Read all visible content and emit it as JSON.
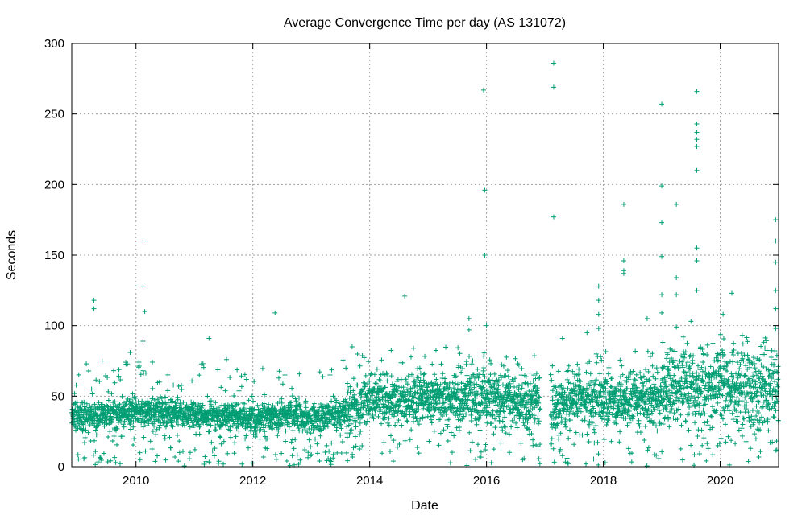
{
  "chart_data": {
    "type": "scatter",
    "title": "Average Convergence Time per day (AS 131072)",
    "xlabel": "Date",
    "ylabel": "Seconds",
    "xlim": [
      2008.9,
      2021.0
    ],
    "ylim": [
      0,
      300
    ],
    "xticks": [
      2010,
      2012,
      2014,
      2016,
      2018,
      2020
    ],
    "xtick_labels": [
      "2010",
      "2012",
      "2014",
      "2016",
      "2018",
      "2020"
    ],
    "yticks": [
      0,
      50,
      100,
      150,
      200,
      250,
      300
    ],
    "ytick_labels": [
      "0",
      "50",
      "100",
      "150",
      "200",
      "250",
      "300"
    ],
    "grid": true,
    "marker": "+",
    "color": "#009e73",
    "gap": [
      2016.92,
      2017.1
    ],
    "baseline": [
      [
        2008.9,
        36
      ],
      [
        2009.5,
        37
      ],
      [
        2010.0,
        40
      ],
      [
        2010.5,
        39
      ],
      [
        2011.0,
        37
      ],
      [
        2011.5,
        35
      ],
      [
        2012.0,
        35
      ],
      [
        2012.5,
        37
      ],
      [
        2013.0,
        36
      ],
      [
        2013.3,
        35
      ],
      [
        2013.6,
        40
      ],
      [
        2013.9,
        48
      ],
      [
        2014.2,
        47
      ],
      [
        2015.0,
        48
      ],
      [
        2016.0,
        50
      ],
      [
        2016.5,
        47
      ],
      [
        2016.9,
        45
      ],
      [
        2017.1,
        44
      ],
      [
        2017.5,
        48
      ],
      [
        2018.0,
        48
      ],
      [
        2018.5,
        47
      ],
      [
        2018.95,
        48
      ],
      [
        2019.1,
        58
      ],
      [
        2019.5,
        58
      ],
      [
        2020.0,
        60
      ],
      [
        2020.5,
        55
      ],
      [
        2021.0,
        55
      ]
    ],
    "outliers": [
      {
        "x": 2009.28,
        "y": 118
      },
      {
        "x": 2009.28,
        "y": 112
      },
      {
        "x": 2009.42,
        "y": 75
      },
      {
        "x": 2009.9,
        "y": 81
      },
      {
        "x": 2010.12,
        "y": 160
      },
      {
        "x": 2010.12,
        "y": 128
      },
      {
        "x": 2010.15,
        "y": 110
      },
      {
        "x": 2010.12,
        "y": 89
      },
      {
        "x": 2010.12,
        "y": 68
      },
      {
        "x": 2011.25,
        "y": 91
      },
      {
        "x": 2011.55,
        "y": 76
      },
      {
        "x": 2012.38,
        "y": 109
      },
      {
        "x": 2013.7,
        "y": 85
      },
      {
        "x": 2014.6,
        "y": 121
      },
      {
        "x": 2014.75,
        "y": 84
      },
      {
        "x": 2015.95,
        "y": 267
      },
      {
        "x": 2015.97,
        "y": 196
      },
      {
        "x": 2015.97,
        "y": 150
      },
      {
        "x": 2016.0,
        "y": 100
      },
      {
        "x": 2015.7,
        "y": 105
      },
      {
        "x": 2015.7,
        "y": 97
      },
      {
        "x": 2017.15,
        "y": 286
      },
      {
        "x": 2017.15,
        "y": 269
      },
      {
        "x": 2017.15,
        "y": 177
      },
      {
        "x": 2017.3,
        "y": 91
      },
      {
        "x": 2017.92,
        "y": 128
      },
      {
        "x": 2017.92,
        "y": 118
      },
      {
        "x": 2017.92,
        "y": 108
      },
      {
        "x": 2017.92,
        "y": 98
      },
      {
        "x": 2017.72,
        "y": 95
      },
      {
        "x": 2018.35,
        "y": 186
      },
      {
        "x": 2018.35,
        "y": 146
      },
      {
        "x": 2018.35,
        "y": 139
      },
      {
        "x": 2018.35,
        "y": 137
      },
      {
        "x": 2018.75,
        "y": 105
      },
      {
        "x": 2019.0,
        "y": 257
      },
      {
        "x": 2019.0,
        "y": 199
      },
      {
        "x": 2019.0,
        "y": 173
      },
      {
        "x": 2019.0,
        "y": 149
      },
      {
        "x": 2019.0,
        "y": 122
      },
      {
        "x": 2019.0,
        "y": 109
      },
      {
        "x": 2019.25,
        "y": 186
      },
      {
        "x": 2019.25,
        "y": 134
      },
      {
        "x": 2019.25,
        "y": 122
      },
      {
        "x": 2019.25,
        "y": 99
      },
      {
        "x": 2019.6,
        "y": 266
      },
      {
        "x": 2019.6,
        "y": 243
      },
      {
        "x": 2019.6,
        "y": 237
      },
      {
        "x": 2019.6,
        "y": 232
      },
      {
        "x": 2019.6,
        "y": 227
      },
      {
        "x": 2019.6,
        "y": 210
      },
      {
        "x": 2019.6,
        "y": 155
      },
      {
        "x": 2019.6,
        "y": 146
      },
      {
        "x": 2019.6,
        "y": 125
      },
      {
        "x": 2019.5,
        "y": 103
      },
      {
        "x": 2020.05,
        "y": 108
      },
      {
        "x": 2020.2,
        "y": 123
      },
      {
        "x": 2020.95,
        "y": 175
      },
      {
        "x": 2020.95,
        "y": 160
      },
      {
        "x": 2020.95,
        "y": 145
      },
      {
        "x": 2020.95,
        "y": 125
      },
      {
        "x": 2020.95,
        "y": 112
      },
      {
        "x": 2020.95,
        "y": 98
      }
    ]
  }
}
